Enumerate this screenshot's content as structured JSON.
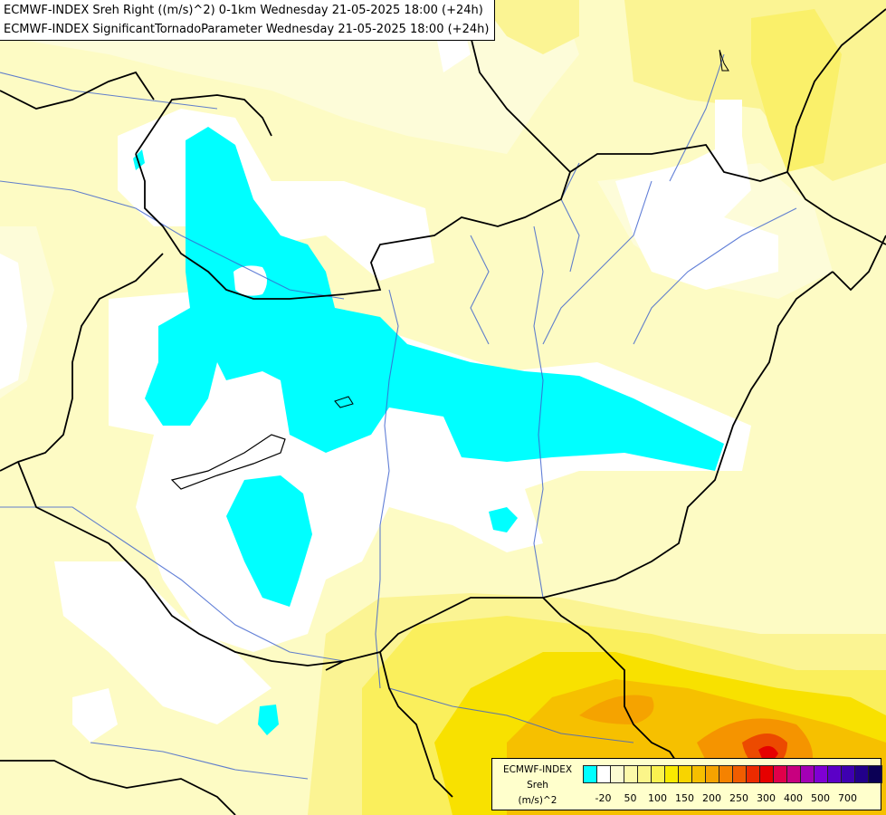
{
  "header": {
    "line1": "ECMWF-INDEX Sreh Right ((m/s)^2) 0-1km Wednesday 21-05-2025 18:00 (+24h)",
    "line2": "ECMWF-INDEX SignificantTornadoParameter Wednesday 21-05-2025 18:00 (+24h)"
  },
  "legend": {
    "title": "ECMWF-INDEX",
    "variable": "Sreh",
    "units": "(m/s)^2",
    "tick_labels": [
      "-20",
      "50",
      "100",
      "150",
      "200",
      "250",
      "300",
      "400",
      "500",
      "700"
    ],
    "colors": [
      "#00ffff",
      "#ffffff",
      "#fbfbd2",
      "#fcf9aa",
      "#fbf589",
      "#fbf250",
      "#f9ea00",
      "#f8d400",
      "#f6bf00",
      "#f5a300",
      "#f58200",
      "#f05d00",
      "#ec2b00",
      "#e60000",
      "#e0004a",
      "#c8007f",
      "#a300b5",
      "#7f00d4",
      "#5b00c7",
      "#3e00b0",
      "#22008a",
      "#0b0055"
    ]
  }
}
